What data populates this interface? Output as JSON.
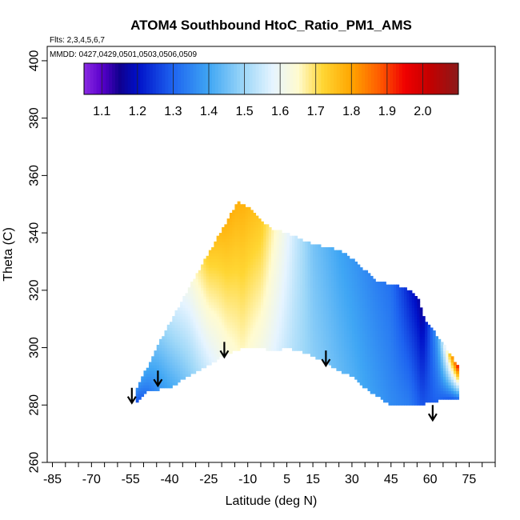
{
  "chart_data": {
    "type": "heatmap",
    "title": "ATOM4 Southbound HtoC_Ratio_PM1_AMS",
    "flights_label": "Flts: 2,3,4,5,6,7",
    "mmdd_label": "MMDD: 0427,0429,0501,0503,0506,0509",
    "xlabel": "Latitude (deg N)",
    "ylabel": "Theta (C)",
    "xlim": [
      -87,
      85
    ],
    "ylim": [
      260,
      405
    ],
    "x_ticks": [
      -85,
      -70,
      -55,
      -40,
      -25,
      -10,
      5,
      15,
      30,
      45,
      60,
      75
    ],
    "x_minor_step": 5,
    "y_ticks": [
      260,
      280,
      300,
      320,
      340,
      360,
      380,
      400
    ],
    "colorbar": {
      "min": 1.05,
      "max": 2.1,
      "ticks": [
        1.1,
        1.2,
        1.3,
        1.4,
        1.5,
        1.6,
        1.7,
        1.8,
        1.9,
        2.0
      ],
      "tick_labels": [
        "1.1",
        "1.2",
        "1.3",
        "1.4",
        "1.5",
        "1.6",
        "1.7",
        "1.8",
        "1.9",
        "2.0"
      ],
      "stops": [
        {
          "v": 1.05,
          "c": "#8a2be2"
        },
        {
          "v": 1.1,
          "c": "#5a00cc"
        },
        {
          "v": 1.15,
          "c": "#10008e"
        },
        {
          "v": 1.2,
          "c": "#0010c8"
        },
        {
          "v": 1.3,
          "c": "#1e64f0"
        },
        {
          "v": 1.4,
          "c": "#3fa6f4"
        },
        {
          "v": 1.5,
          "c": "#9fd8f8"
        },
        {
          "v": 1.58,
          "c": "#e6f4ff"
        },
        {
          "v": 1.65,
          "c": "#fffbd0"
        },
        {
          "v": 1.72,
          "c": "#ffd633"
        },
        {
          "v": 1.8,
          "c": "#ffa500"
        },
        {
          "v": 1.88,
          "c": "#ff5a00"
        },
        {
          "v": 1.95,
          "c": "#f00000"
        },
        {
          "v": 2.02,
          "c": "#c30000"
        },
        {
          "v": 2.1,
          "c": "#8b1a1a"
        }
      ]
    },
    "domain": {
      "left_lat": -53,
      "right_lat": 71,
      "top_outline": [
        [
          -53,
          285
        ],
        [
          -45,
          300
        ],
        [
          -35,
          317
        ],
        [
          -25,
          333
        ],
        [
          -18,
          344
        ],
        [
          -14,
          351
        ],
        [
          -10,
          349
        ],
        [
          -5,
          344
        ],
        [
          0,
          341
        ],
        [
          5,
          340
        ],
        [
          10,
          338
        ],
        [
          15,
          336
        ],
        [
          20,
          335
        ],
        [
          25,
          334
        ],
        [
          30,
          331
        ],
        [
          35,
          327
        ],
        [
          40,
          323
        ],
        [
          45,
          322
        ],
        [
          50,
          321
        ],
        [
          55,
          318
        ],
        [
          58,
          310
        ],
        [
          62,
          305
        ],
        [
          66,
          300
        ],
        [
          71,
          293
        ]
      ],
      "bottom_outline": [
        [
          -53,
          281
        ],
        [
          -48,
          285
        ],
        [
          -40,
          286
        ],
        [
          -33,
          290
        ],
        [
          -25,
          294
        ],
        [
          -18,
          298
        ],
        [
          -12,
          300
        ],
        [
          -5,
          300
        ],
        [
          0,
          299
        ],
        [
          5,
          300
        ],
        [
          10,
          299
        ],
        [
          15,
          297
        ],
        [
          20,
          295
        ],
        [
          25,
          292
        ],
        [
          30,
          290
        ],
        [
          35,
          286
        ],
        [
          40,
          283
        ],
        [
          45,
          280
        ],
        [
          50,
          280
        ],
        [
          55,
          280
        ],
        [
          60,
          281
        ],
        [
          65,
          282
        ],
        [
          71,
          282
        ]
      ],
      "ratio_profile": [
        {
          "lat": -53,
          "top": 1.36,
          "bot": 1.28
        },
        {
          "lat": -45,
          "top": 1.45,
          "bot": 1.36
        },
        {
          "lat": -38,
          "top": 1.55,
          "bot": 1.42
        },
        {
          "lat": -32,
          "top": 1.62,
          "bot": 1.48
        },
        {
          "lat": -25,
          "top": 1.74,
          "bot": 1.56
        },
        {
          "lat": -18,
          "top": 1.78,
          "bot": 1.63
        },
        {
          "lat": -12,
          "top": 1.78,
          "bot": 1.66
        },
        {
          "lat": -5,
          "top": 1.74,
          "bot": 1.62
        },
        {
          "lat": 0,
          "top": 1.66,
          "bot": 1.58
        },
        {
          "lat": 8,
          "top": 1.55,
          "bot": 1.52
        },
        {
          "lat": 15,
          "top": 1.46,
          "bot": 1.48
        },
        {
          "lat": 25,
          "top": 1.4,
          "bot": 1.44
        },
        {
          "lat": 35,
          "top": 1.36,
          "bot": 1.4
        },
        {
          "lat": 45,
          "top": 1.32,
          "bot": 1.36
        },
        {
          "lat": 52,
          "top": 1.22,
          "bot": 1.34
        },
        {
          "lat": 57,
          "top": 1.16,
          "bot": 1.28
        },
        {
          "lat": 63,
          "top": 1.4,
          "bot": 1.3
        },
        {
          "lat": 68,
          "top": 1.78,
          "bot": 1.28
        },
        {
          "lat": 71,
          "top": 1.95,
          "bot": 1.3
        }
      ]
    },
    "arrows": [
      {
        "lat": -54.5,
        "theta": 286,
        "theta_end": 281
      },
      {
        "lat": -44.5,
        "theta": 292,
        "theta_end": 287
      },
      {
        "lat": -19,
        "theta": 302,
        "theta_end": 297
      },
      {
        "lat": 20,
        "theta": 299,
        "theta_end": 294
      },
      {
        "lat": 61,
        "theta": 280,
        "theta_end": 275
      }
    ]
  }
}
